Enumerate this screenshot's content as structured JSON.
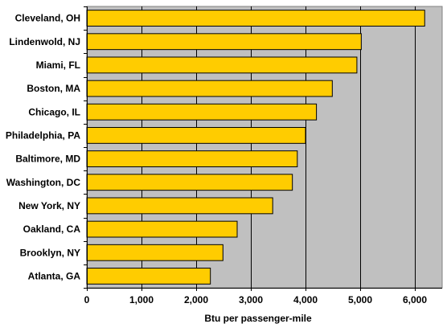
{
  "chart_data": {
    "type": "bar",
    "orientation": "horizontal",
    "categories": [
      "Cleveland, OH",
      "Lindenwold, NJ",
      "Miami, FL",
      "Boston, MA",
      "Chicago, IL",
      "Philadelphia, PA",
      "Baltimore, MD",
      "Washington, DC",
      "New York, NY",
      "Oakland, CA",
      "Brooklyn, NY",
      "Atlanta, GA"
    ],
    "values": [
      6180,
      5020,
      4940,
      4490,
      4200,
      4000,
      3850,
      3760,
      3400,
      2750,
      2490,
      2260
    ],
    "title": "",
    "xlabel": "Btu per passenger-mile",
    "ylabel": "",
    "xlim": [
      0,
      6500
    ],
    "xticks": [
      0,
      1000,
      2000,
      3000,
      4000,
      5000,
      6000
    ],
    "xtick_labels": [
      "0",
      "1,000",
      "2,000",
      "3,000",
      "4,000",
      "5,000",
      "6,000"
    ],
    "grid": "vertical",
    "legend": "none",
    "colors": {
      "bar_fill": "#FFCC00",
      "bar_stroke": "#000000",
      "plot_background": "#C0C0C0",
      "gridline": "#000000"
    }
  }
}
